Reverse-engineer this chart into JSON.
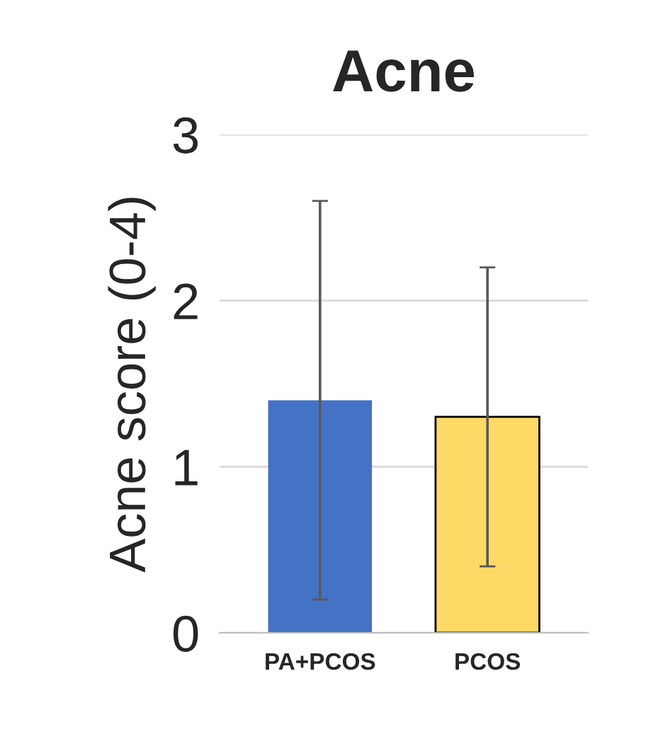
{
  "chart_data": {
    "type": "bar",
    "title": "Acne",
    "ylabel": "Acne score (0-4)",
    "categories": [
      "PA+PCOS",
      "PCOS"
    ],
    "values": [
      1.4,
      1.3
    ],
    "colors": [
      "#4472c4",
      "#ffd966"
    ],
    "errors": [
      1.2,
      0.9
    ],
    "ylim": [
      0,
      3
    ],
    "yticks": [
      0,
      1,
      2,
      3
    ],
    "grid": "y"
  }
}
